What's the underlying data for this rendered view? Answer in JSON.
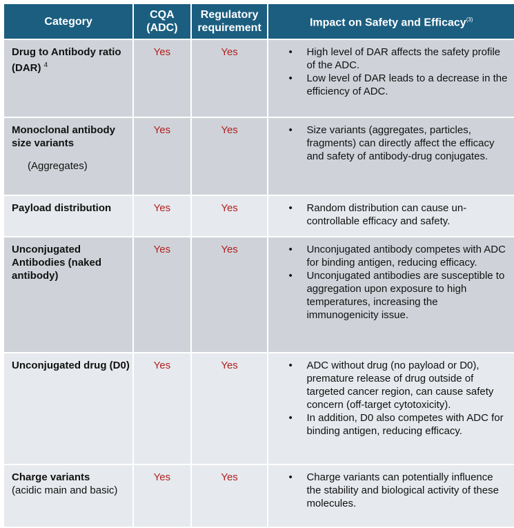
{
  "headers": [
    "Category",
    "CQA (ADC)",
    "Regulatory requirement",
    "Impact on Safety and Efficacy"
  ],
  "header_ref": "(3)",
  "rows": [
    {
      "category": "Drug to Antibody ratio  (DAR)",
      "category_ref": "4",
      "sub": "",
      "cqa": "Yes",
      "reg": "Yes",
      "impact": [
        "High level of DAR affects the safety profile of the ADC.",
        " Low level of DAR leads to a decrease in the efficiency of ADC."
      ]
    },
    {
      "category": "Monoclonal antibody size variants",
      "category_ref": "",
      "sub": "(Aggregates)",
      "cqa": "Yes",
      "reg": "Yes",
      "impact": [
        "Size variants (aggregates, particles, fragments) can directly affect the efficacy and safety of antibody-drug conjugates."
      ]
    },
    {
      "category": "Payload distribution",
      "category_ref": "",
      "sub": "",
      "cqa": "Yes",
      "reg": "Yes",
      "impact": [
        "Random distribution can cause un-controllable efficacy and safety."
      ]
    },
    {
      "category": "Unconjugated Antibodies (naked antibody)",
      "category_ref": "",
      "sub": "",
      "cqa": "Yes",
      "reg": "Yes",
      "impact": [
        "Unconjugated antibody competes with ADC for binding antigen, reducing efficacy.",
        "Unconjugated antibodies are susceptible to aggregation upon exposure to high temperatures,  increasing the immunogenicity issue."
      ]
    },
    {
      "category": "Unconjugated drug (D0)",
      "category_ref": "",
      "sub": "",
      "cqa": "Yes",
      "reg": "Yes",
      "impact": [
        "ADC without drug (no payload or D0), premature release of drug outside of targeted cancer region, can cause safety concern (off-target cytotoxicity).",
        "In addition, D0 also competes with ADC for binding antigen, reducing efficacy."
      ]
    },
    {
      "category": "Charge variants",
      "category_ref": "",
      "sub": "(acidic main and basic)",
      "cqa": "Yes",
      "reg": "Yes",
      "impact": [
        "Charge variants can potentially influence the stability and biological activity of these molecules."
      ]
    }
  ],
  "colors": {
    "header_bg": "#1b5e80",
    "row_dark": "#cfd3d9",
    "row_light": "#e6e9ed",
    "yes_text": "#b02020"
  }
}
